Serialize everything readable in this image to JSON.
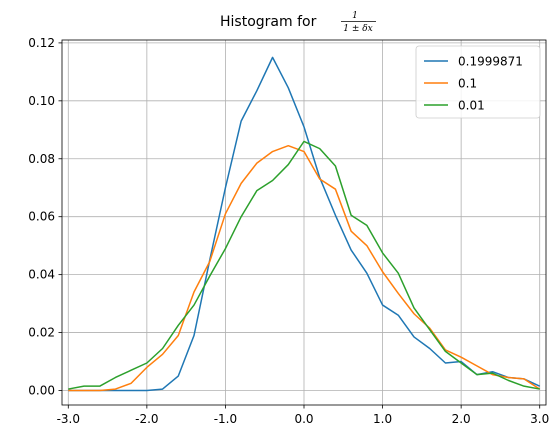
{
  "chart_data": {
    "type": "line",
    "title": "Histogram for",
    "title_formula": {
      "numerator": "1",
      "denominator": "1 ± δx"
    },
    "xlabel": "",
    "ylabel": "",
    "xlim": [
      -3.08,
      3.08
    ],
    "ylim": [
      -0.005,
      0.121
    ],
    "xticks": [
      -3.0,
      -2.0,
      -1.0,
      0.0,
      1.0,
      2.0,
      3.0
    ],
    "xtick_labels": [
      "-3.0",
      "-2.0",
      "-1.0",
      "0.0",
      "1.0",
      "2.0",
      "3.0"
    ],
    "yticks": [
      0.0,
      0.02,
      0.04,
      0.06,
      0.08,
      0.1,
      0.12
    ],
    "ytick_labels": [
      "0.00",
      "0.02",
      "0.04",
      "0.06",
      "0.08",
      "0.10",
      "0.12"
    ],
    "grid": true,
    "legend": "top-right",
    "series": [
      {
        "name": "0.1999871",
        "color": "#1f77b4",
        "points": [
          [
            -3.0,
            0.0
          ],
          [
            -2.8,
            0.0
          ],
          [
            -2.6,
            0.0
          ],
          [
            -2.4,
            0.0
          ],
          [
            -2.2,
            0.0
          ],
          [
            -2.0,
            0.0
          ],
          [
            -1.8,
            0.0005
          ],
          [
            -1.6,
            0.005
          ],
          [
            -1.4,
            0.019
          ],
          [
            -1.2,
            0.045
          ],
          [
            -1.0,
            0.07
          ],
          [
            -0.8,
            0.093
          ],
          [
            -0.6,
            0.1035
          ],
          [
            -0.4,
            0.115
          ],
          [
            -0.2,
            0.1045
          ],
          [
            0.0,
            0.091
          ],
          [
            0.2,
            0.0735
          ],
          [
            0.4,
            0.0605
          ],
          [
            0.6,
            0.0485
          ],
          [
            0.8,
            0.0405
          ],
          [
            1.0,
            0.0295
          ],
          [
            1.2,
            0.026
          ],
          [
            1.4,
            0.0185
          ],
          [
            1.6,
            0.0145
          ],
          [
            1.8,
            0.0095
          ],
          [
            2.0,
            0.01
          ],
          [
            2.2,
            0.0055
          ],
          [
            2.4,
            0.0065
          ],
          [
            2.6,
            0.0045
          ],
          [
            2.8,
            0.004
          ],
          [
            3.0,
            0.0015
          ]
        ]
      },
      {
        "name": "0.1",
        "color": "#ff7f0e",
        "points": [
          [
            -3.0,
            0.0
          ],
          [
            -2.8,
            0.0
          ],
          [
            -2.6,
            0.0
          ],
          [
            -2.4,
            0.0005
          ],
          [
            -2.2,
            0.0025
          ],
          [
            -2.0,
            0.008
          ],
          [
            -1.8,
            0.0125
          ],
          [
            -1.6,
            0.019
          ],
          [
            -1.4,
            0.034
          ],
          [
            -1.2,
            0.0445
          ],
          [
            -1.0,
            0.061
          ],
          [
            -0.8,
            0.0715
          ],
          [
            -0.6,
            0.0785
          ],
          [
            -0.4,
            0.0825
          ],
          [
            -0.2,
            0.0845
          ],
          [
            0.0,
            0.0825
          ],
          [
            0.2,
            0.073
          ],
          [
            0.4,
            0.0695
          ],
          [
            0.6,
            0.055
          ],
          [
            0.8,
            0.05
          ],
          [
            1.0,
            0.041
          ],
          [
            1.2,
            0.0335
          ],
          [
            1.4,
            0.0265
          ],
          [
            1.6,
            0.0215
          ],
          [
            1.8,
            0.014
          ],
          [
            2.0,
            0.0115
          ],
          [
            2.2,
            0.0085
          ],
          [
            2.4,
            0.0055
          ],
          [
            2.6,
            0.0045
          ],
          [
            2.8,
            0.004
          ],
          [
            3.0,
            0.0005
          ]
        ]
      },
      {
        "name": "0.01",
        "color": "#2ca02c",
        "points": [
          [
            -3.0,
            0.0005
          ],
          [
            -2.8,
            0.0015
          ],
          [
            -2.6,
            0.0015
          ],
          [
            -2.4,
            0.0045
          ],
          [
            -2.2,
            0.007
          ],
          [
            -2.0,
            0.0095
          ],
          [
            -1.8,
            0.0145
          ],
          [
            -1.6,
            0.0225
          ],
          [
            -1.4,
            0.0295
          ],
          [
            -1.2,
            0.0395
          ],
          [
            -1.0,
            0.049
          ],
          [
            -0.8,
            0.06
          ],
          [
            -0.6,
            0.069
          ],
          [
            -0.4,
            0.0725
          ],
          [
            -0.2,
            0.078
          ],
          [
            0.0,
            0.086
          ],
          [
            0.2,
            0.0835
          ],
          [
            0.4,
            0.0775
          ],
          [
            0.6,
            0.0605
          ],
          [
            0.8,
            0.057
          ],
          [
            1.0,
            0.0475
          ],
          [
            1.2,
            0.0405
          ],
          [
            1.4,
            0.0285
          ],
          [
            1.6,
            0.021
          ],
          [
            1.8,
            0.0135
          ],
          [
            2.0,
            0.0095
          ],
          [
            2.2,
            0.0055
          ],
          [
            2.4,
            0.006
          ],
          [
            2.6,
            0.0035
          ],
          [
            2.8,
            0.0015
          ],
          [
            3.0,
            0.0005
          ]
        ]
      }
    ]
  }
}
